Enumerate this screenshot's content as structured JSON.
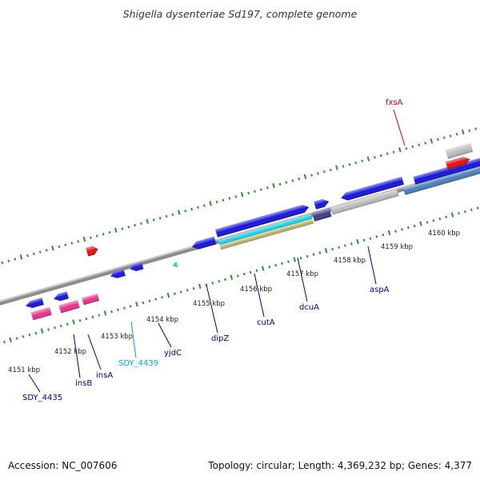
{
  "title": "Shigella dysenteriae Sd197, complete genome",
  "footer": {
    "accession": "Accession: NC_007606",
    "summary": "Topology: circular; Length: 4,369,232 bp; Genes: 4,377"
  },
  "colors": {
    "backbone": "#8c8c8c",
    "tick": "#2f8f2f",
    "gene_blue": "#1515d8",
    "rna_pink": "#e6338c",
    "highlight_red": "#e30d0d",
    "grey_feature": "#bdbdbd",
    "cyan_feature": "#22d3e6",
    "olive_feature": "#b7b36a",
    "steel_feature": "#4a7fb8",
    "navy_feature": "#3b3b8a",
    "label_blue": "#00008b",
    "label_cyan": "#00a9d4",
    "label_red": "#d40000"
  },
  "kbp_labels": [
    "4151 kbp",
    "4152 kbp",
    "4153 kbp",
    "4154 kbp",
    "4155 kbp",
    "4156 kbp",
    "4157 kbp",
    "4158 kbp",
    "4159 kbp",
    "4160 kbp"
  ],
  "gene_labels": [
    {
      "text": "SDY_4435",
      "color": "label_blue"
    },
    {
      "text": "insB",
      "color": "label_blue"
    },
    {
      "text": "insA",
      "color": "label_blue"
    },
    {
      "text": "SDY_4439",
      "color": "label_cyan"
    },
    {
      "text": "yjdC",
      "color": "label_blue"
    },
    {
      "text": "dipZ",
      "color": "label_blue"
    },
    {
      "text": "cutA",
      "color": "label_blue"
    },
    {
      "text": "dcuA",
      "color": "label_blue"
    },
    {
      "text": "aspA",
      "color": "label_blue"
    },
    {
      "text": "fxsA",
      "color": "label_red"
    }
  ]
}
